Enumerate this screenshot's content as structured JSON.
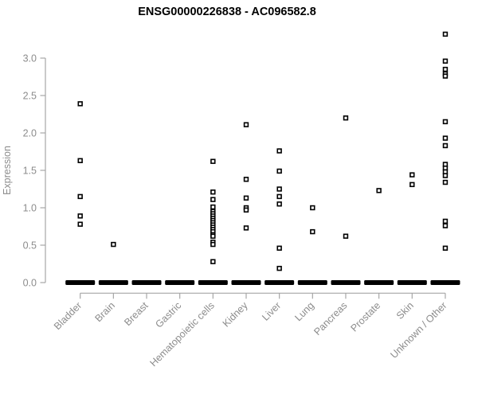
{
  "window": {
    "background": "#ffffff"
  },
  "colors": {
    "title_text": "#000000",
    "axis_line": "#a6a6a6",
    "axis_text": "#8c8c8c",
    "marker_stroke": "#000000",
    "marker_fill": "#ffffff",
    "zero_bar": "#000000"
  },
  "chart_data": {
    "type": "scatter",
    "subtype": "strip-plot",
    "title": "ENSG00000226838 - AC096582.8",
    "xlabel": "",
    "ylabel": "Expression",
    "ylim": [
      0.0,
      3.4
    ],
    "yticks": [
      0.0,
      0.5,
      1.0,
      1.5,
      2.0,
      2.5,
      3.0
    ],
    "ytick_labels": [
      "0.0",
      "0.5",
      "1.0",
      "1.5",
      "2.0",
      "2.5",
      "3.0"
    ],
    "grid": false,
    "legend": "none",
    "marker": "open-square",
    "categories": [
      "Bladder",
      "Brain",
      "Breast",
      "Gastric",
      "Hematopoietic cells",
      "Kidney",
      "Liver",
      "Lung",
      "Pancreas",
      "Prostate",
      "Skin",
      "Unknown / Other"
    ],
    "zero_bar_note": "each category has a dense bar of samples at expression 0",
    "series": [
      {
        "name": "Bladder",
        "zero_bar": true,
        "values": [
          2.39,
          1.63,
          1.15,
          0.89,
          0.78
        ]
      },
      {
        "name": "Brain",
        "zero_bar": true,
        "values": [
          0.51
        ]
      },
      {
        "name": "Breast",
        "zero_bar": true,
        "values": []
      },
      {
        "name": "Gastric",
        "zero_bar": true,
        "values": []
      },
      {
        "name": "Hematopoietic cells",
        "zero_bar": true,
        "values": [
          1.62,
          1.21,
          1.11,
          1.01,
          0.95,
          0.92,
          0.89,
          0.86,
          0.83,
          0.8,
          0.77,
          0.74,
          0.71,
          0.68,
          0.64,
          0.62,
          0.54,
          0.51,
          0.28
        ]
      },
      {
        "name": "Kidney",
        "zero_bar": true,
        "values": [
          2.11,
          1.38,
          1.13,
          1.0,
          0.97,
          0.73
        ]
      },
      {
        "name": "Liver",
        "zero_bar": true,
        "values": [
          1.76,
          1.49,
          1.25,
          1.15,
          1.05,
          0.46,
          0.19
        ]
      },
      {
        "name": "Lung",
        "zero_bar": true,
        "values": [
          1.0,
          0.68
        ]
      },
      {
        "name": "Pancreas",
        "zero_bar": true,
        "values": [
          2.2,
          0.62
        ]
      },
      {
        "name": "Prostate",
        "zero_bar": true,
        "values": [
          1.23
        ]
      },
      {
        "name": "Skin",
        "zero_bar": true,
        "values": [
          1.44,
          1.31
        ]
      },
      {
        "name": "Unknown / Other",
        "zero_bar": true,
        "values": [
          3.32,
          2.96,
          2.85,
          2.79,
          2.76,
          2.15,
          1.93,
          1.83,
          1.58,
          1.53,
          1.48,
          1.43,
          1.34,
          0.82,
          0.76,
          0.46
        ]
      }
    ]
  }
}
